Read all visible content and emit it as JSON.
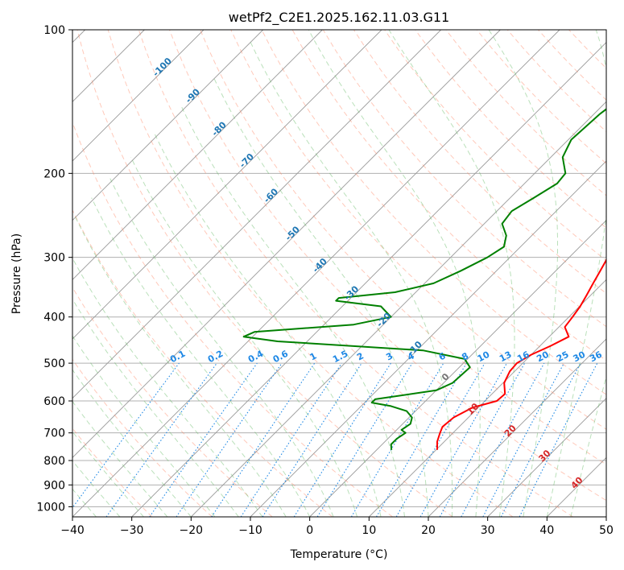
{
  "chart_data": {
    "type": "line",
    "title": "wetPf2_C2E1.2025.162.11.03.G11",
    "xlabel": "Temperature (°C)",
    "ylabel": "Pressure (hPa)",
    "xlim": [
      -40,
      50
    ],
    "ylim": [
      1050,
      100
    ],
    "y_scale": "log",
    "grid": true,
    "x_ticks": [
      -40,
      -30,
      -20,
      -10,
      0,
      10,
      20,
      30,
      40,
      50
    ],
    "y_ticks": [
      100,
      200,
      300,
      400,
      500,
      600,
      700,
      800,
      900,
      1000
    ],
    "series": [
      {
        "name": "",
        "color": "#ff0000",
        "points": [
          [
            -0.5,
            100
          ],
          [
            -1.5,
            110
          ],
          [
            -2.5,
            118
          ],
          [
            -3.0,
            125
          ],
          [
            -2.5,
            140
          ],
          [
            -1.8,
            160
          ],
          [
            -0.8,
            180
          ],
          [
            0.5,
            200
          ],
          [
            2.0,
            225
          ],
          [
            3.5,
            245
          ],
          [
            4.6,
            260
          ],
          [
            5.5,
            280
          ],
          [
            6.5,
            300
          ],
          [
            7.5,
            320
          ],
          [
            8.4,
            340
          ],
          [
            9.3,
            360
          ],
          [
            10.1,
            380
          ],
          [
            10.6,
            400
          ],
          [
            11.0,
            420
          ],
          [
            13.3,
            440
          ],
          [
            11.8,
            460
          ],
          [
            10.0,
            480
          ],
          [
            9.0,
            500
          ],
          [
            9.2,
            520
          ],
          [
            10.2,
            550
          ],
          [
            12.2,
            580
          ],
          [
            12.0,
            600
          ],
          [
            9.0,
            620
          ],
          [
            7.5,
            650
          ],
          [
            7.2,
            680
          ],
          [
            7.8,
            700
          ],
          [
            8.8,
            730
          ],
          [
            10.2,
            760
          ]
        ]
      },
      {
        "name": "",
        "color": "#008000",
        "points": [
          [
            -13.0,
            100
          ],
          [
            -14.5,
            107
          ],
          [
            -16.0,
            112
          ],
          [
            -16.8,
            118
          ],
          [
            -16.8,
            125
          ],
          [
            -17.8,
            135
          ],
          [
            -19.0,
            150
          ],
          [
            -19.5,
            170
          ],
          [
            -18.0,
            185
          ],
          [
            -14.8,
            200
          ],
          [
            -14.5,
            210
          ],
          [
            -16.0,
            225
          ],
          [
            -17.5,
            240
          ],
          [
            -17.0,
            255
          ],
          [
            -14.3,
            270
          ],
          [
            -12.8,
            285
          ],
          [
            -13.8,
            300
          ],
          [
            -16.0,
            320
          ],
          [
            -18.5,
            340
          ],
          [
            -23.5,
            355
          ],
          [
            -32.0,
            365
          ],
          [
            -32.0,
            370
          ],
          [
            -23.5,
            380
          ],
          [
            -20.0,
            400
          ],
          [
            -25.0,
            415
          ],
          [
            -40.5,
            430
          ],
          [
            -41.5,
            440
          ],
          [
            -35.0,
            450
          ],
          [
            -9.0,
            470
          ],
          [
            -0.5,
            490
          ],
          [
            1.8,
            510
          ],
          [
            1.5,
            550
          ],
          [
            0.0,
            570
          ],
          [
            -8.8,
            595
          ],
          [
            -8.8,
            605
          ],
          [
            -5.0,
            615
          ],
          [
            -1.5,
            630
          ],
          [
            0.5,
            650
          ],
          [
            1.3,
            670
          ],
          [
            0.8,
            690
          ],
          [
            2.0,
            700
          ],
          [
            1.5,
            720
          ],
          [
            1.5,
            740
          ],
          [
            2.5,
            760
          ]
        ]
      }
    ],
    "isotherm_labels": [
      "-100",
      "-90",
      "-80",
      "-70",
      "-60",
      "-50",
      "-40",
      "-30",
      "-20",
      "-10",
      "0",
      "10",
      "20",
      "30",
      "40"
    ],
    "isotherm_label_values": [
      -100,
      -90,
      -80,
      -70,
      -60,
      -50,
      -40,
      -30,
      -20,
      -10,
      0,
      10,
      20,
      30,
      40
    ],
    "mixing_ratio_labels": [
      "0.1",
      "0.2",
      "0.4",
      "0.6",
      "1",
      "1.5",
      "2",
      "3",
      "4",
      "6",
      "8",
      "10",
      "13",
      "16",
      "20",
      "25",
      "30",
      "36"
    ],
    "mixing_ratio_values": [
      0.1,
      0.2,
      0.4,
      0.6,
      1,
      1.5,
      2,
      3,
      4,
      6,
      8,
      10,
      13,
      16,
      20,
      25,
      30,
      36
    ],
    "colors": {
      "temperature": "#ff0000",
      "dewpoint": "#008000",
      "isotherm": "#999999",
      "dry_adiabat": "#ff8866",
      "moist_adiabat": "#66bb66",
      "mixing_ratio": "#1e88e5",
      "cold_label": "#1f77b4",
      "warm_label": "#d62728",
      "zero_label": "#777777"
    }
  }
}
